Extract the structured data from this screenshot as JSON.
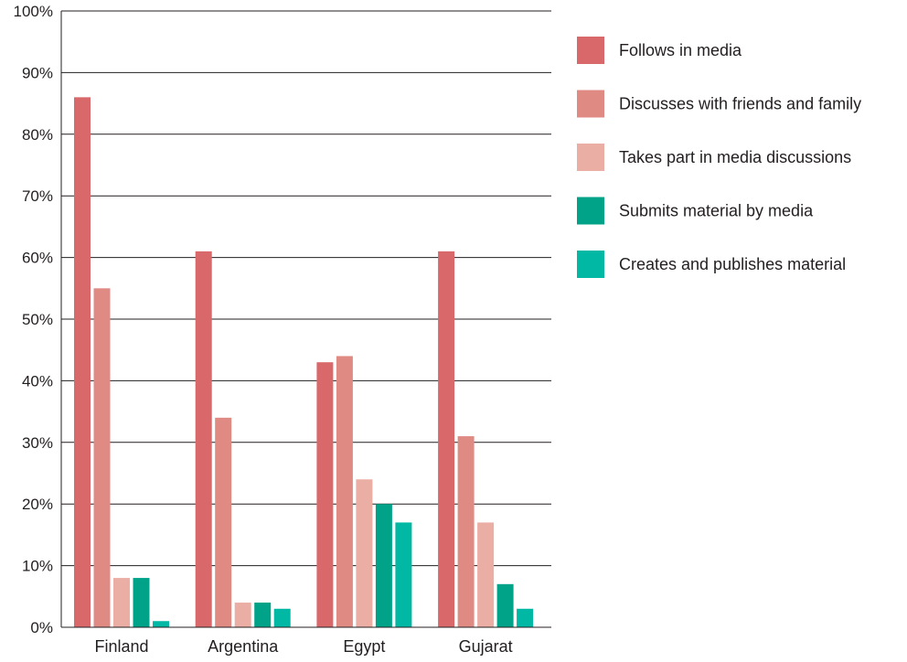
{
  "chart_data": {
    "type": "bar",
    "categories": [
      "Finland",
      "Argentina",
      "Egypt",
      "Gujarat"
    ],
    "series": [
      {
        "name": "Follows in media",
        "color": "#d9686b",
        "values": [
          86,
          61,
          43,
          61
        ]
      },
      {
        "name": "Discusses with friends and family",
        "color": "#e08a84",
        "values": [
          55,
          34,
          44,
          31
        ]
      },
      {
        "name": "Takes part in media discussions",
        "color": "#ebaea5",
        "values": [
          8,
          4,
          24,
          17
        ]
      },
      {
        "name": "Submits material by media",
        "color": "#00a388",
        "values": [
          8,
          4,
          20,
          7
        ]
      },
      {
        "name": "Creates and publishes material",
        "color": "#00b8a4",
        "values": [
          1,
          3,
          17,
          3
        ]
      }
    ],
    "ylim": [
      0,
      100
    ],
    "yticks": [
      0,
      10,
      20,
      30,
      40,
      50,
      60,
      70,
      80,
      90,
      100
    ],
    "ytick_labels": [
      "0%",
      "10%",
      "20%",
      "30%",
      "40%",
      "50%",
      "60%",
      "70%",
      "80%",
      "90%",
      "100%"
    ],
    "grid": true,
    "legend_position": "right"
  }
}
